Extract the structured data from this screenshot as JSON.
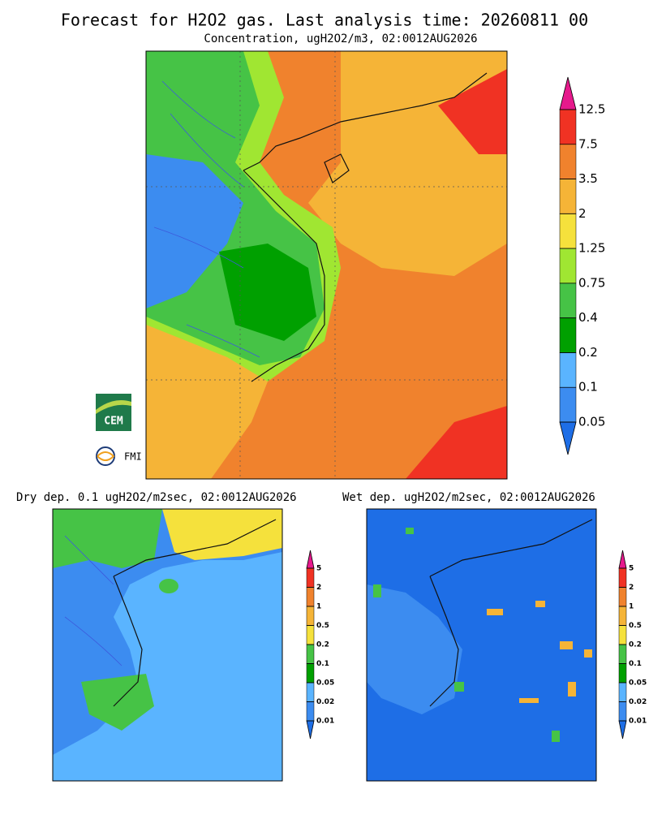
{
  "title": "Forecast for H2O2 gas. Last analysis time: 20260811 00",
  "panels": [
    {
      "subtitle": "Concentration, ugH2O2/m3, 02:0012AUG2026",
      "levels": [
        12.5,
        7.5,
        3.5,
        2,
        1.25,
        0.75,
        0.4,
        0.2,
        0.1,
        0.05
      ],
      "colors": [
        "#e6198c",
        "#f03223",
        "#f0822d",
        "#f5b437",
        "#f5e13c",
        "#a0e632",
        "#46c346",
        "#00a000",
        "#5ab4ff",
        "#3c8cf0",
        "#1e6ee6"
      ]
    },
    {
      "subtitle": "Dry dep. 0.1 ugH2O2/m2sec, 02:0012AUG2026",
      "levels": [
        5,
        2,
        1,
        0.5,
        0.2,
        0.1,
        0.05,
        0.02,
        0.01
      ],
      "colors": [
        "#e6198c",
        "#f03223",
        "#f0822d",
        "#f5b437",
        "#f5e13c",
        "#46c346",
        "#00a000",
        "#5ab4ff",
        "#3c8cf0",
        "#1e6ee6"
      ]
    },
    {
      "subtitle": "Wet dep. ugH2O2/m2sec, 02:0012AUG2026",
      "levels": [
        5,
        2,
        1,
        0.5,
        0.2,
        0.1,
        0.05,
        0.02,
        0.01
      ],
      "colors": [
        "#e6198c",
        "#f03223",
        "#f0822d",
        "#f5b437",
        "#f5e13c",
        "#46c346",
        "#00a000",
        "#5ab4ff",
        "#3c8cf0",
        "#1e6ee6"
      ]
    }
  ],
  "logos": [
    "CEM",
    "FMI"
  ]
}
